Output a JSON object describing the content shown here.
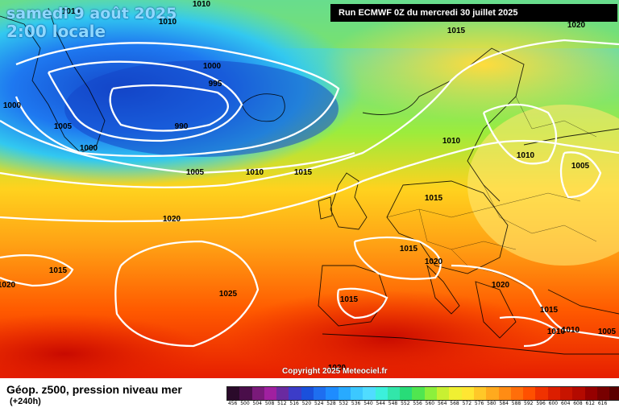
{
  "header": {
    "date_line": "samedi 9 août 2025",
    "time_line": "2:00 locale",
    "run_info": "Run ECMWF 0Z du mercredi 30 juillet 2025"
  },
  "footer": {
    "title": "Géop. z500, pression niveau mer",
    "subtitle": "(+240h)",
    "copyright": "Copyright 2025 Meteociel.fr"
  },
  "isobar_labels": [
    {
      "text": "1010"
    },
    {
      "text": "1010"
    },
    {
      "text": "1010"
    },
    {
      "text": "1000"
    },
    {
      "text": "995"
    },
    {
      "text": "990"
    },
    {
      "text": "1000"
    },
    {
      "text": "1005"
    },
    {
      "text": "1000"
    },
    {
      "text": "1005"
    },
    {
      "text": "1010"
    },
    {
      "text": "1015"
    },
    {
      "text": "1015"
    },
    {
      "text": "1020"
    },
    {
      "text": "1010"
    },
    {
      "text": "1010"
    },
    {
      "text": "1005"
    },
    {
      "text": "1015"
    },
    {
      "text": "1015"
    },
    {
      "text": "1020"
    },
    {
      "text": "1015"
    },
    {
      "text": "1020"
    },
    {
      "text": "1025"
    },
    {
      "text": "1015"
    },
    {
      "text": "1020"
    },
    {
      "text": "1015"
    },
    {
      "text": "1010"
    },
    {
      "text": "1005"
    },
    {
      "text": "1020"
    },
    {
      "text": "1020"
    },
    {
      "text": "1010"
    }
  ],
  "color_scale": {
    "colors": [
      "#2a0a2a",
      "#4a0e4a",
      "#7a1a7a",
      "#a020a0",
      "#6a2aa0",
      "#3c3cc8",
      "#1a50dc",
      "#1e6ef0",
      "#1e8cff",
      "#28aaff",
      "#3cc8ff",
      "#50dcff",
      "#3cf0dc",
      "#32e6aa",
      "#28dc78",
      "#50e650",
      "#8cf03c",
      "#c8f032",
      "#f0f032",
      "#ffe632",
      "#ffc828",
      "#ffaa1e",
      "#ff8c14",
      "#ff6e0a",
      "#ff5000",
      "#f03200",
      "#dc1e00",
      "#c81400",
      "#b40a00",
      "#960000",
      "#780000",
      "#5a0000",
      "#3c0000",
      "#1e0000"
    ],
    "labels": [
      "456",
      "500",
      "504",
      "508",
      "512",
      "516",
      "520",
      "524",
      "528",
      "532",
      "536",
      "540",
      "544",
      "548",
      "552",
      "556",
      "560",
      "564",
      "568",
      "572",
      "576",
      "580",
      "584",
      "588",
      "592",
      "596",
      "600",
      "604",
      "608",
      "612",
      "616"
    ]
  }
}
